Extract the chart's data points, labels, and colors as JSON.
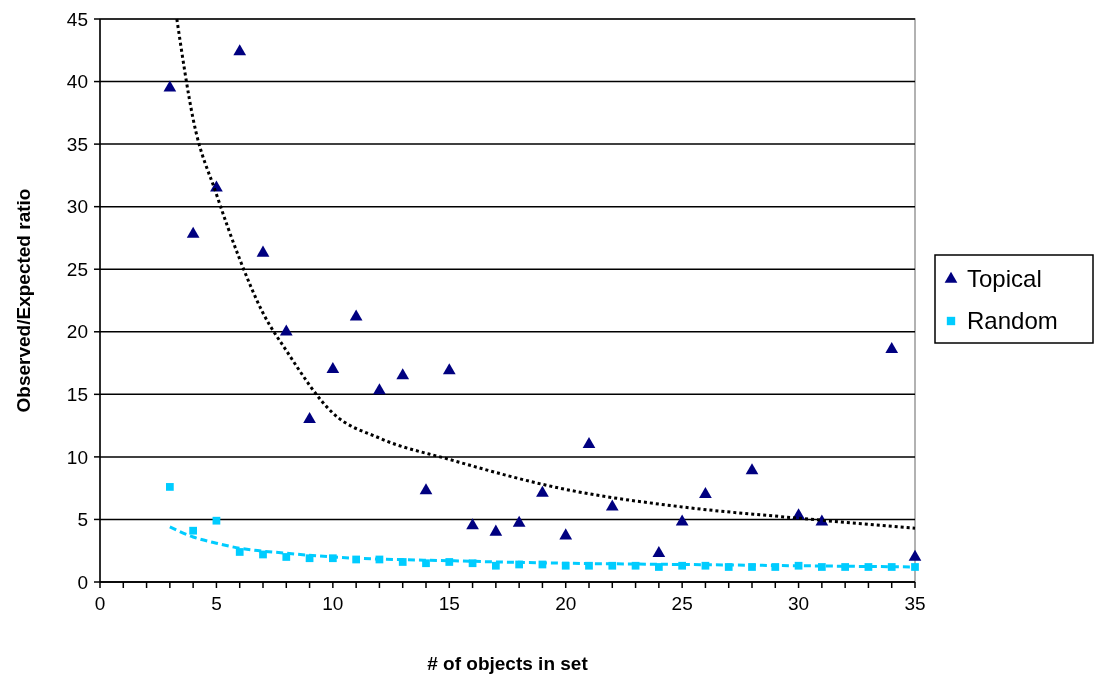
{
  "chart_data": {
    "type": "scatter",
    "xlabel": "# of objects in set",
    "ylabel": "Observed/Expected ratio",
    "xlim": [
      0,
      35
    ],
    "ylim": [
      0,
      45
    ],
    "xticks": [
      0,
      {
        "value": 1,
        "label": null
      },
      {
        "value": 2,
        "label": null
      },
      {
        "value": 3,
        "label": null
      },
      {
        "value": 4,
        "label": null
      },
      5,
      {
        "value": 6,
        "label": null
      },
      {
        "value": 7,
        "label": null
      },
      {
        "value": 8,
        "label": null
      },
      {
        "value": 9,
        "label": null
      },
      10,
      {
        "value": 11,
        "label": null
      },
      {
        "value": 12,
        "label": null
      },
      {
        "value": 13,
        "label": null
      },
      {
        "value": 14,
        "label": null
      },
      15,
      {
        "value": 16,
        "label": null
      },
      {
        "value": 17,
        "label": null
      },
      {
        "value": 18,
        "label": null
      },
      {
        "value": 19,
        "label": null
      },
      20,
      {
        "value": 21,
        "label": null
      },
      {
        "value": 22,
        "label": null
      },
      {
        "value": 23,
        "label": null
      },
      {
        "value": 24,
        "label": null
      },
      25,
      {
        "value": 26,
        "label": null
      },
      {
        "value": 27,
        "label": null
      },
      {
        "value": 28,
        "label": null
      },
      {
        "value": 29,
        "label": null
      },
      30,
      {
        "value": 31,
        "label": null
      },
      {
        "value": 32,
        "label": null
      },
      {
        "value": 33,
        "label": null
      },
      {
        "value": 34,
        "label": null
      },
      35
    ],
    "yticks": [
      0,
      5,
      10,
      15,
      20,
      25,
      30,
      35,
      40,
      45
    ],
    "grid": "y",
    "legend": "right",
    "series": [
      {
        "name": "Topical",
        "color": "#000080",
        "marker": "triangle",
        "x": [
          3,
          4,
          5,
          6,
          7,
          8,
          9,
          10,
          11,
          12,
          13,
          14,
          15,
          16,
          17,
          18,
          19,
          20,
          21,
          22,
          24,
          25,
          26,
          28,
          30,
          31,
          34,
          35
        ],
        "values": [
          39.5,
          27.8,
          31.5,
          42.4,
          26.3,
          20,
          13,
          17,
          21.2,
          15.3,
          16.5,
          7.3,
          16.9,
          4.5,
          4,
          4.7,
          7.1,
          3.7,
          11,
          6,
          2.3,
          4.8,
          7,
          8.9,
          5.3,
          4.8,
          18.6,
          2
        ]
      },
      {
        "name": "Random",
        "color": "#00ccff",
        "marker": "square",
        "x": [
          3,
          4,
          5,
          6,
          7,
          8,
          9,
          10,
          11,
          12,
          13,
          14,
          15,
          16,
          17,
          18,
          19,
          20,
          21,
          22,
          23,
          24,
          25,
          26,
          27,
          28,
          29,
          30,
          31,
          32,
          33,
          34,
          35
        ],
        "values": [
          7.6,
          4.1,
          4.9,
          2.4,
          2.2,
          2,
          1.9,
          1.9,
          1.8,
          1.8,
          1.6,
          1.5,
          1.6,
          1.5,
          1.3,
          1.4,
          1.4,
          1.3,
          1.3,
          1.3,
          1.3,
          1.2,
          1.3,
          1.3,
          1.2,
          1.2,
          1.2,
          1.3,
          1.2,
          1.2,
          1.2,
          1.2,
          1.2
        ]
      },
      {
        "type": "line",
        "color": "#000000",
        "marker": "none",
        "line_style": "dotted",
        "x": [
          3.3,
          4,
          5,
          6,
          7,
          8,
          10,
          12,
          15,
          20,
          25,
          30,
          35
        ],
        "values": [
          45,
          37,
          31,
          25.8,
          21.5,
          18.5,
          13.5,
          11.5,
          9.8,
          7.4,
          6,
          5.1,
          4.3
        ]
      },
      {
        "type": "line",
        "color": "#00ccff",
        "marker": "none",
        "line_style": "dashed",
        "x": [
          3,
          4,
          5,
          6,
          8,
          10,
          15,
          20,
          25,
          30,
          35
        ],
        "values": [
          4.4,
          3.6,
          3.1,
          2.7,
          2.3,
          2,
          1.7,
          1.5,
          1.4,
          1.3,
          1.2
        ]
      }
    ]
  }
}
